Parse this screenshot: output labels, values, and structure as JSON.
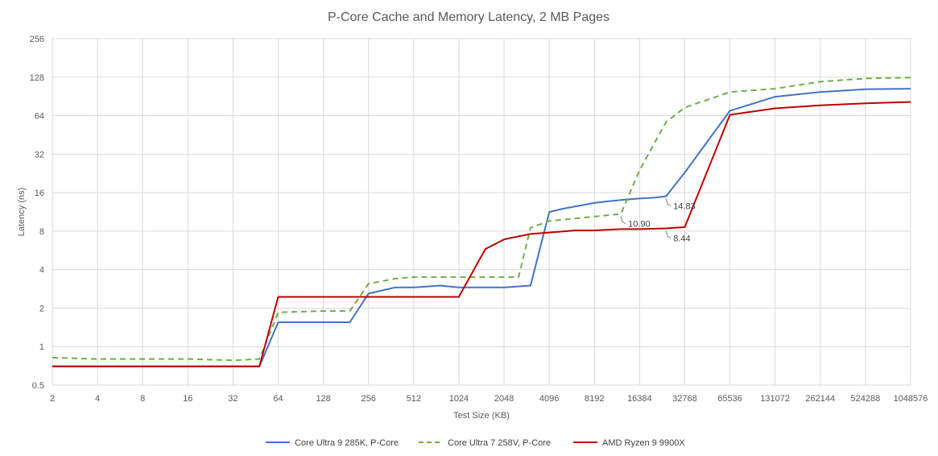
{
  "chart_data": {
    "type": "line",
    "title": "P-Core Cache and Memory Latency, 2 MB Pages",
    "xlabel": "Test Size (KB)",
    "ylabel": "Latency (ns)",
    "x_scale": "log2",
    "y_scale": "log2",
    "xlim": [
      2,
      1048576
    ],
    "ylim": [
      0.5,
      256
    ],
    "x_ticks": [
      "2",
      "4",
      "8",
      "16",
      "32",
      "64",
      "128",
      "256",
      "512",
      "1024",
      "2048",
      "4096",
      "8192",
      "16384",
      "32768",
      "65536",
      "131072",
      "262144",
      "524288",
      "1048576"
    ],
    "y_ticks": [
      "0.5",
      "1",
      "2",
      "4",
      "8",
      "16",
      "32",
      "64",
      "128",
      "256"
    ],
    "grid": true,
    "legend_position": "bottom",
    "series": [
      {
        "name": "Core Ultra 9 285K, P-Core",
        "color": "#4472c4",
        "dash": "solid",
        "points": [
          [
            2,
            0.7
          ],
          [
            4,
            0.7
          ],
          [
            8,
            0.7
          ],
          [
            16,
            0.7
          ],
          [
            32,
            0.7
          ],
          [
            48,
            0.7
          ],
          [
            64,
            1.55
          ],
          [
            96,
            1.55
          ],
          [
            128,
            1.55
          ],
          [
            192,
            1.55
          ],
          [
            256,
            2.6
          ],
          [
            384,
            2.9
          ],
          [
            512,
            2.9
          ],
          [
            768,
            3.0
          ],
          [
            1024,
            2.9
          ],
          [
            1536,
            2.9
          ],
          [
            2048,
            2.9
          ],
          [
            3072,
            3.0
          ],
          [
            4096,
            11.3
          ],
          [
            5120,
            12.0
          ],
          [
            6144,
            12.5
          ],
          [
            8192,
            13.3
          ],
          [
            10240,
            13.7
          ],
          [
            12288,
            14.0
          ],
          [
            16384,
            14.4
          ],
          [
            20480,
            14.6
          ],
          [
            24576,
            15.0
          ],
          [
            32768,
            23.0
          ],
          [
            65536,
            70.0
          ],
          [
            131072,
            90.0
          ],
          [
            262144,
            98.0
          ],
          [
            524288,
            103.0
          ],
          [
            1048576,
            104.0
          ]
        ]
      },
      {
        "name": "Core Ultra 7 258V, P-Core",
        "color": "#70ad47",
        "dash": "dashed",
        "points": [
          [
            2,
            0.82
          ],
          [
            4,
            0.8
          ],
          [
            8,
            0.8
          ],
          [
            16,
            0.8
          ],
          [
            32,
            0.78
          ],
          [
            48,
            0.8
          ],
          [
            64,
            1.85
          ],
          [
            128,
            1.9
          ],
          [
            192,
            1.9
          ],
          [
            256,
            3.1
          ],
          [
            384,
            3.4
          ],
          [
            512,
            3.5
          ],
          [
            1024,
            3.5
          ],
          [
            2048,
            3.5
          ],
          [
            2560,
            3.5
          ],
          [
            3072,
            8.5
          ],
          [
            4096,
            9.6
          ],
          [
            8192,
            10.4
          ],
          [
            12288,
            10.9
          ],
          [
            16384,
            24.0
          ],
          [
            24576,
            57.0
          ],
          [
            32768,
            74.0
          ],
          [
            65536,
            98.0
          ],
          [
            131072,
            104.0
          ],
          [
            262144,
            118.0
          ],
          [
            524288,
            125.0
          ],
          [
            1048576,
            127.0
          ]
        ]
      },
      {
        "name": "AMD Ryzen 9 9900X",
        "color": "#c00000",
        "dash": "solid",
        "points": [
          [
            2,
            0.7
          ],
          [
            4,
            0.7
          ],
          [
            8,
            0.7
          ],
          [
            16,
            0.7
          ],
          [
            32,
            0.7
          ],
          [
            48,
            0.7
          ],
          [
            64,
            2.45
          ],
          [
            128,
            2.45
          ],
          [
            256,
            2.45
          ],
          [
            512,
            2.45
          ],
          [
            1024,
            2.45
          ],
          [
            1536,
            5.8
          ],
          [
            2048,
            6.9
          ],
          [
            3072,
            7.6
          ],
          [
            4096,
            7.8
          ],
          [
            6144,
            8.1
          ],
          [
            8192,
            8.1
          ],
          [
            12288,
            8.3
          ],
          [
            16384,
            8.3
          ],
          [
            24576,
            8.4
          ],
          [
            32768,
            8.6
          ],
          [
            65536,
            65.0
          ],
          [
            131072,
            73.0
          ],
          [
            262144,
            77.0
          ],
          [
            524288,
            80.0
          ],
          [
            1048576,
            82.0
          ]
        ]
      }
    ],
    "annotations": [
      {
        "label": "14.83",
        "x": 24576,
        "y": 15.0
      },
      {
        "label": "10.90",
        "x": 12288,
        "y": 10.9
      },
      {
        "label": "8.44",
        "x": 24576,
        "y": 8.4
      }
    ]
  }
}
